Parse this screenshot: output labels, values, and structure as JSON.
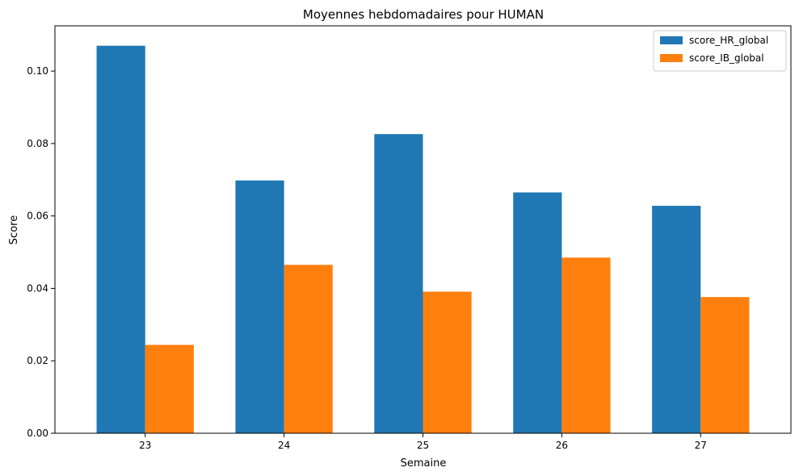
{
  "chart_data": {
    "type": "bar",
    "title": "Moyennes hebdomadaires pour HUMAN",
    "xlabel": "Semaine",
    "ylabel": "Score",
    "categories": [
      "23",
      "24",
      "25",
      "26",
      "27"
    ],
    "series": [
      {
        "name": "score_HR_global",
        "color": "#1f77b4",
        "values": [
          0.107,
          0.0698,
          0.0826,
          0.0665,
          0.0628
        ]
      },
      {
        "name": "score_IB_global",
        "color": "#ff7f0e",
        "values": [
          0.0244,
          0.0465,
          0.0391,
          0.0485,
          0.0376
        ]
      }
    ],
    "ylim": [
      0,
      0.1125
    ],
    "yticks": [
      0.0,
      0.02,
      0.04,
      0.06,
      0.08,
      0.1
    ],
    "ytick_labels": [
      "0.00",
      "0.02",
      "0.04",
      "0.06",
      "0.08",
      "0.10"
    ],
    "grid": false,
    "legend": "top-right"
  }
}
